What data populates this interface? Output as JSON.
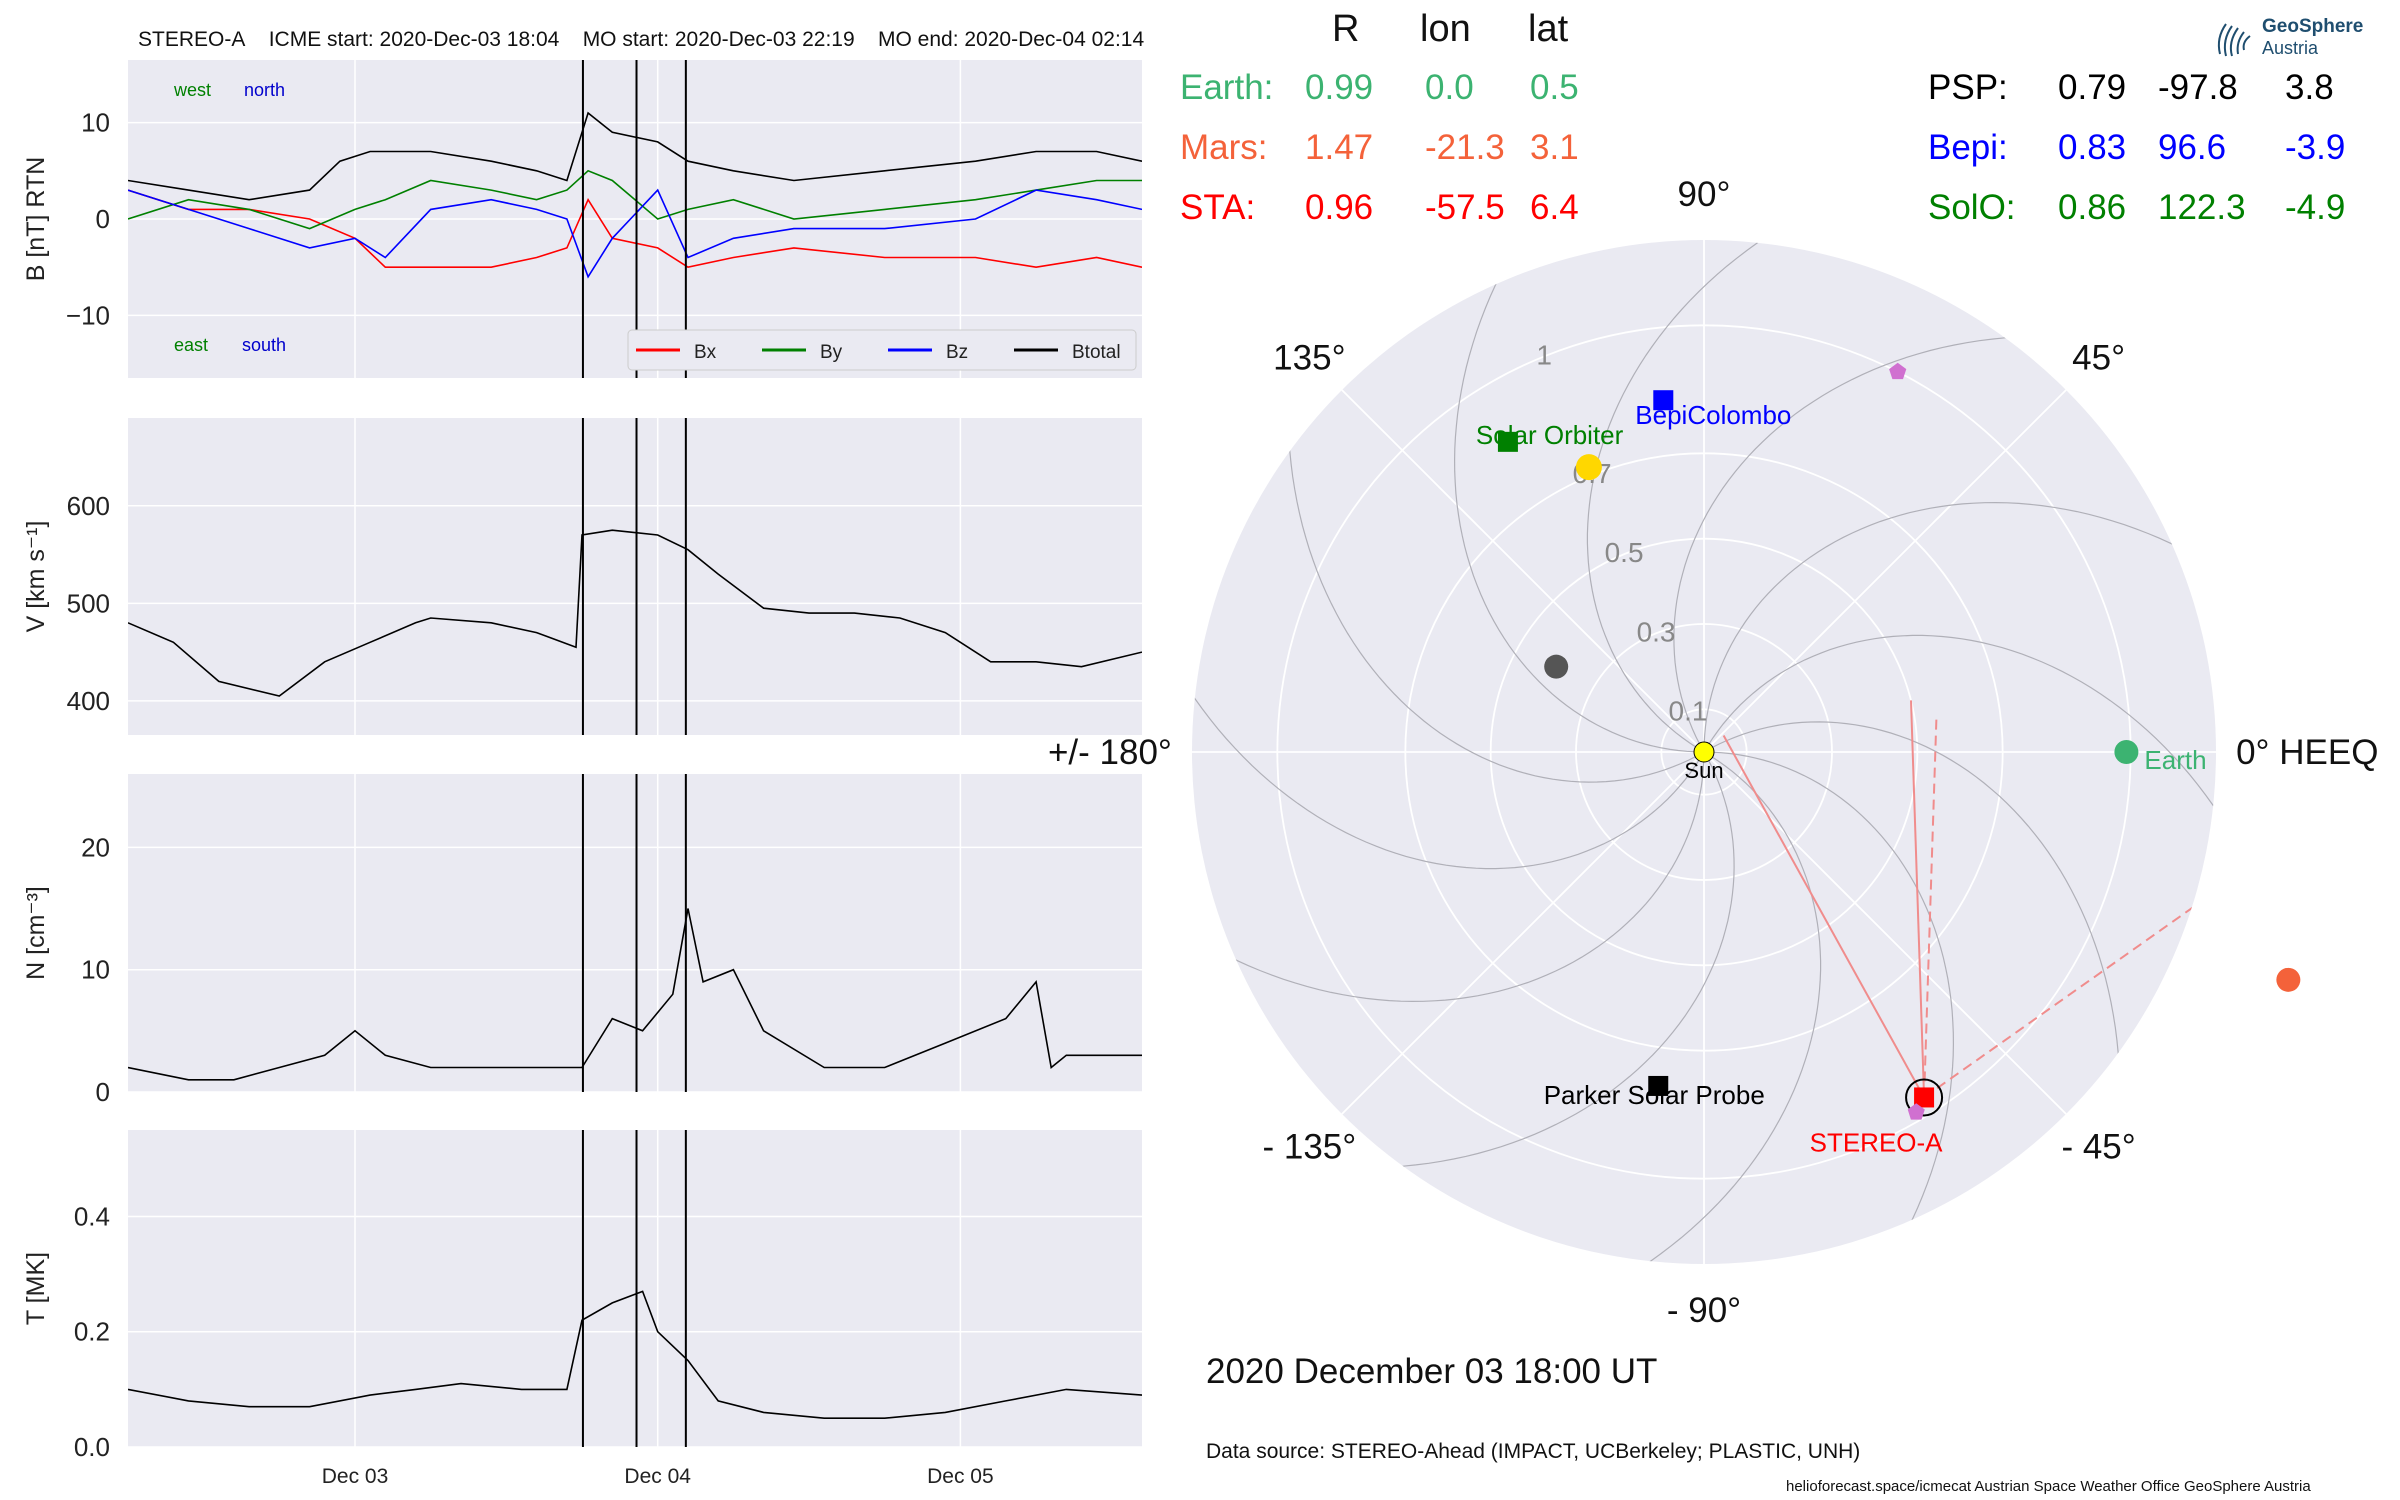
{
  "header": {
    "spacecraft": "STEREO-A",
    "icme_start": "ICME start: 2020-Dec-03 18:04",
    "mo_start": "MO start: 2020-Dec-03 22:19",
    "mo_end": "MO end: 2020-Dec-04 02:14"
  },
  "position_table": {
    "headers": [
      "R",
      "lon",
      "lat"
    ],
    "left": [
      {
        "name": "Earth:",
        "r": "0.99",
        "lon": "0.0",
        "lat": "0.5",
        "color": "#3cb371"
      },
      {
        "name": "Mars:",
        "r": "1.47",
        "lon": "-21.3",
        "lat": "3.1",
        "color": "#f4623a"
      },
      {
        "name": "STA:",
        "r": "0.96",
        "lon": "-57.5",
        "lat": "6.4",
        "color": "#ff0000"
      }
    ],
    "right": [
      {
        "name": "PSP:",
        "r": "0.79",
        "lon": "-97.8",
        "lat": "3.8",
        "color": "#000000"
      },
      {
        "name": "Bepi:",
        "r": "0.83",
        "lon": "96.6",
        "lat": "-3.9",
        "color": "#0000ff"
      },
      {
        "name": "SolO:",
        "r": "0.86",
        "lon": "122.3",
        "lat": "-4.9",
        "color": "#008000"
      }
    ]
  },
  "logo": {
    "line1": "GeoSphere",
    "line2": "Austria"
  },
  "date_label": "2020 December 03  18:00 UT",
  "data_source": "Data source: STEREO-Ahead (IMPACT, UCBerkeley; PLASTIC, UNH)",
  "footer": "helioforecast.space/icmecat   Austrian Space Weather Office   GeoSphere Austria",
  "chart_data": [
    {
      "type": "line",
      "panel": "magnetic_field",
      "ylabel": "B [nT] RTN",
      "ylim": [
        -16.5,
        16.5
      ],
      "yticks": [
        10,
        0,
        -10
      ],
      "ytick_labels": [
        "10",
        "0",
        "−10"
      ],
      "x_range_days": [
        0.0,
        3.35
      ],
      "x_ticks": [
        {
          "day": 0.75,
          "label": "Dec 03"
        },
        {
          "day": 1.75,
          "label": "Dec 04"
        },
        {
          "day": 2.75,
          "label": "Dec 05"
        }
      ],
      "event_lines": [
        1.503,
        1.68,
        1.843
      ],
      "annotations": {
        "west": "west",
        "north": "north",
        "east": "east",
        "south": "south"
      },
      "legend": [
        "Bx",
        "By",
        "Bz",
        "Btotal"
      ],
      "legend_position": "lower-right",
      "series": [
        {
          "name": "Bx",
          "color": "#ff0000",
          "x": [
            0,
            0.2,
            0.4,
            0.6,
            0.75,
            0.85,
            1.0,
            1.2,
            1.35,
            1.45,
            1.52,
            1.6,
            1.75,
            1.85,
            2.0,
            2.2,
            2.5,
            2.8,
            3.0,
            3.2,
            3.35
          ],
          "y": [
            3,
            1,
            1,
            0,
            -2,
            -5,
            -5,
            -5,
            -4,
            -3,
            2,
            -2,
            -3,
            -5,
            -4,
            -3,
            -4,
            -4,
            -5,
            -4,
            -5
          ]
        },
        {
          "name": "By",
          "color": "#008000",
          "x": [
            0,
            0.2,
            0.4,
            0.6,
            0.75,
            0.85,
            1.0,
            1.2,
            1.35,
            1.45,
            1.52,
            1.6,
            1.75,
            1.85,
            2.0,
            2.2,
            2.5,
            2.8,
            3.0,
            3.2,
            3.35
          ],
          "y": [
            0,
            2,
            1,
            -1,
            1,
            2,
            4,
            3,
            2,
            3,
            5,
            4,
            0,
            1,
            2,
            0,
            1,
            2,
            3,
            4,
            4
          ]
        },
        {
          "name": "Bz",
          "color": "#0000ff",
          "x": [
            0,
            0.2,
            0.4,
            0.6,
            0.75,
            0.85,
            1.0,
            1.2,
            1.35,
            1.45,
            1.52,
            1.6,
            1.75,
            1.85,
            2.0,
            2.2,
            2.5,
            2.8,
            3.0,
            3.2,
            3.35
          ],
          "y": [
            3,
            1,
            -1,
            -3,
            -2,
            -4,
            1,
            2,
            1,
            0,
            -6,
            -2,
            3,
            -4,
            -2,
            -1,
            -1,
            0,
            3,
            2,
            1
          ]
        },
        {
          "name": "Btotal",
          "color": "#000000",
          "x": [
            0,
            0.2,
            0.4,
            0.6,
            0.7,
            0.8,
            1.0,
            1.2,
            1.35,
            1.45,
            1.52,
            1.6,
            1.75,
            1.85,
            2.0,
            2.2,
            2.5,
            2.8,
            3.0,
            3.2,
            3.35
          ],
          "y": [
            4,
            3,
            2,
            3,
            6,
            7,
            7,
            6,
            5,
            4,
            11,
            9,
            8,
            6,
            5,
            4,
            5,
            6,
            7,
            7,
            6
          ]
        }
      ]
    },
    {
      "type": "line",
      "panel": "speed",
      "ylabel": "V [km s⁻¹]",
      "ylim": [
        365,
        690
      ],
      "yticks": [
        600,
        500,
        400
      ],
      "ytick_labels": [
        "600",
        "500",
        "400"
      ],
      "x_range_days": [
        0.0,
        3.35
      ],
      "event_lines": [
        1.503,
        1.68,
        1.843
      ],
      "series": [
        {
          "name": "V",
          "color": "#000000",
          "x": [
            0,
            0.15,
            0.3,
            0.5,
            0.65,
            0.8,
            0.95,
            1.0,
            1.2,
            1.35,
            1.48,
            1.5,
            1.6,
            1.75,
            1.85,
            1.95,
            2.1,
            2.25,
            2.4,
            2.55,
            2.7,
            2.85,
            3.0,
            3.15,
            3.35
          ],
          "y": [
            480,
            460,
            420,
            405,
            440,
            460,
            480,
            485,
            480,
            470,
            455,
            570,
            575,
            570,
            555,
            530,
            495,
            490,
            490,
            485,
            470,
            440,
            440,
            435,
            450
          ]
        }
      ]
    },
    {
      "type": "line",
      "panel": "density",
      "ylabel": "N [cm⁻³]",
      "ylim": [
        0,
        26
      ],
      "yticks": [
        20,
        10,
        0
      ],
      "ytick_labels": [
        "20",
        "10",
        "0"
      ],
      "x_range_days": [
        0.0,
        3.35
      ],
      "event_lines": [
        1.503,
        1.68,
        1.843
      ],
      "series": [
        {
          "name": "N",
          "color": "#000000",
          "x": [
            0,
            0.2,
            0.35,
            0.5,
            0.65,
            0.75,
            0.85,
            1.0,
            1.2,
            1.4,
            1.5,
            1.6,
            1.7,
            1.8,
            1.85,
            1.9,
            2.0,
            2.1,
            2.3,
            2.5,
            2.7,
            2.9,
            3.0,
            3.05,
            3.1,
            3.2,
            3.35
          ],
          "y": [
            2,
            1,
            1,
            2,
            3,
            5,
            3,
            2,
            2,
            2,
            2,
            6,
            5,
            8,
            15,
            9,
            10,
            5,
            2,
            2,
            4,
            6,
            9,
            2,
            3,
            3,
            3
          ]
        }
      ]
    },
    {
      "type": "line",
      "panel": "temperature",
      "ylabel": "T [MK]",
      "ylim": [
        0,
        0.55
      ],
      "yticks": [
        0.4,
        0.2,
        0.0
      ],
      "ytick_labels": [
        "0.4",
        "0.2",
        "0.0"
      ],
      "x_range_days": [
        0.0,
        3.35
      ],
      "event_lines": [
        1.503,
        1.68,
        1.843
      ],
      "series": [
        {
          "name": "T",
          "color": "#000000",
          "x": [
            0,
            0.2,
            0.4,
            0.6,
            0.8,
            0.95,
            1.1,
            1.3,
            1.45,
            1.5,
            1.6,
            1.7,
            1.75,
            1.85,
            1.95,
            2.1,
            2.3,
            2.5,
            2.7,
            2.9,
            3.1,
            3.35
          ],
          "y": [
            0.1,
            0.08,
            0.07,
            0.07,
            0.09,
            0.1,
            0.11,
            0.1,
            0.1,
            0.22,
            0.25,
            0.27,
            0.2,
            0.15,
            0.08,
            0.06,
            0.05,
            0.05,
            0.06,
            0.08,
            0.1,
            0.09
          ]
        }
      ]
    },
    {
      "type": "scatter",
      "panel": "polar_position_plot",
      "coordinate_system": "HEEQ",
      "r_ticks": [
        0.1,
        0.3,
        0.5,
        0.7,
        1.0
      ],
      "r_max": 1.2,
      "angle_labels": [
        {
          "deg": 90,
          "text": "90°"
        },
        {
          "deg": 45,
          "text": "45°"
        },
        {
          "deg": 0,
          "text": "0° HEEQ"
        },
        {
          "deg": -45,
          "text": "- 45°"
        },
        {
          "deg": -90,
          "text": "- 90°"
        },
        {
          "deg": -135,
          "text": "- 135°"
        },
        {
          "deg": 180,
          "text": "+/- 180°"
        },
        {
          "deg": 135,
          "text": "135°"
        }
      ],
      "bodies": [
        {
          "name": "Sun",
          "label": "Sun",
          "r": 0.0,
          "lon": 0,
          "marker": "circle",
          "color": "#ffff00"
        },
        {
          "name": "Earth",
          "label": "Earth",
          "r": 0.99,
          "lon": 0.0,
          "marker": "circle",
          "color": "#3cb371"
        },
        {
          "name": "STEREO-A",
          "label": "STEREO-A",
          "r": 0.96,
          "lon": -57.5,
          "marker": "square",
          "color": "#ff0000"
        },
        {
          "name": "Parker Solar Probe",
          "label": "Parker Solar Probe",
          "r": 0.79,
          "lon": -97.8,
          "marker": "square",
          "color": "#000000"
        },
        {
          "name": "BepiColombo",
          "label": "BepiColombo",
          "r": 0.83,
          "lon": 96.6,
          "marker": "square",
          "color": "#0000ff"
        },
        {
          "name": "Solar Orbiter",
          "label": "Solar Orbiter",
          "r": 0.86,
          "lon": 122.3,
          "marker": "square",
          "color": "#008000"
        },
        {
          "name": "Venus",
          "label": "",
          "r": 0.72,
          "lon": 112,
          "marker": "circle",
          "color": "#ffd700"
        },
        {
          "name": "Mercury",
          "label": "",
          "r": 0.4,
          "lon": 150,
          "marker": "circle",
          "color": "#555555"
        },
        {
          "name": "Mars",
          "label": "",
          "r": 1.47,
          "lon": -21.3,
          "marker": "circle",
          "color": "#f4623a"
        },
        {
          "name": "object-violet-upper",
          "label": "",
          "r": 1.0,
          "lon": 63,
          "marker": "pentagon",
          "color": "#d070d0"
        },
        {
          "name": "object-violet-lower",
          "label": "",
          "r": 0.98,
          "lon": -59.5,
          "marker": "pentagon",
          "color": "#d070d0"
        }
      ]
    }
  ]
}
